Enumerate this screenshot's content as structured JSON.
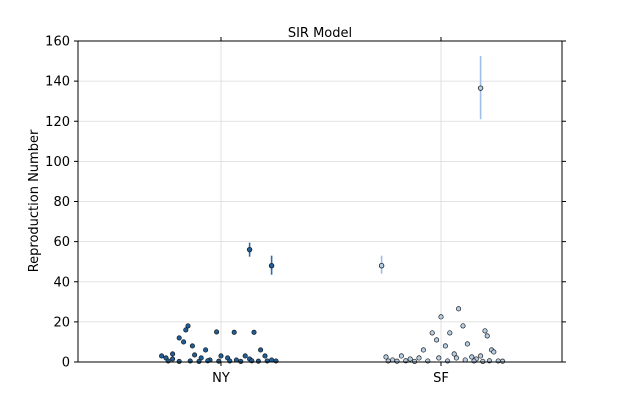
{
  "chart_data": {
    "type": "scatter",
    "title": "SIR Model",
    "xlabel": "",
    "ylabel": "Reproduction Number",
    "ylim": [
      0,
      160
    ],
    "yticks": [
      0,
      20,
      40,
      60,
      80,
      100,
      120,
      140,
      160
    ],
    "grid": true,
    "categories": [
      "NY",
      "SF"
    ],
    "series": [
      {
        "category": "NY",
        "color": "#1f5f99",
        "errorbar_color": "#2b6cb0",
        "points": [
          {
            "x": 0.12,
            "y": 18.0
          },
          {
            "x": 0.11,
            "y": 16.0
          },
          {
            "x": 0.1,
            "y": 10.0
          },
          {
            "x": 0.08,
            "y": 12.0
          },
          {
            "x": 0.14,
            "y": 8.0
          },
          {
            "x": 0.2,
            "y": 6.0
          },
          {
            "x": 0.25,
            "y": 15.0
          },
          {
            "x": 0.33,
            "y": 14.8
          },
          {
            "x": 0.42,
            "y": 14.8
          },
          {
            "x": 0.45,
            "y": 6.0
          },
          {
            "x": 0.05,
            "y": 4.0
          },
          {
            "x": 0.0,
            "y": 3.0
          },
          {
            "x": 0.02,
            "y": 2.0
          },
          {
            "x": 0.05,
            "y": 1.5
          },
          {
            "x": 0.15,
            "y": 3.5
          },
          {
            "x": 0.18,
            "y": 2.0
          },
          {
            "x": 0.22,
            "y": 1.0
          },
          {
            "x": 0.27,
            "y": 3.0
          },
          {
            "x": 0.3,
            "y": 2.0
          },
          {
            "x": 0.34,
            "y": 1.0
          },
          {
            "x": 0.38,
            "y": 3.0
          },
          {
            "x": 0.4,
            "y": 1.5
          },
          {
            "x": 0.47,
            "y": 3.0
          },
          {
            "x": 0.5,
            "y": 1.0
          },
          {
            "x": 0.03,
            "y": 0.5
          },
          {
            "x": 0.08,
            "y": 0.3
          },
          {
            "x": 0.13,
            "y": 0.5
          },
          {
            "x": 0.17,
            "y": 0.3
          },
          {
            "x": 0.21,
            "y": 0.6
          },
          {
            "x": 0.26,
            "y": 0.4
          },
          {
            "x": 0.31,
            "y": 0.5
          },
          {
            "x": 0.36,
            "y": 0.3
          },
          {
            "x": 0.41,
            "y": 0.6
          },
          {
            "x": 0.44,
            "y": 0.4
          },
          {
            "x": 0.48,
            "y": 0.5
          },
          {
            "x": 0.52,
            "y": 0.5
          }
        ],
        "errorbars": [
          {
            "x": 0.4,
            "y": 56.0,
            "low": 52.5,
            "high": 59.5
          },
          {
            "x": 0.5,
            "y": 48.0,
            "low": 43.5,
            "high": 53.0
          }
        ]
      },
      {
        "category": "SF",
        "color": "#b8cfe8",
        "errorbar_color": "#9ebfe6",
        "points": [
          {
            "x": 0.02,
            "y": 2.5
          },
          {
            "x": 0.05,
            "y": 1.0
          },
          {
            "x": 0.09,
            "y": 3.0
          },
          {
            "x": 0.13,
            "y": 1.5
          },
          {
            "x": 0.17,
            "y": 2.0
          },
          {
            "x": 0.19,
            "y": 6.0
          },
          {
            "x": 0.23,
            "y": 14.5
          },
          {
            "x": 0.27,
            "y": 22.5
          },
          {
            "x": 0.25,
            "y": 11.0
          },
          {
            "x": 0.29,
            "y": 8.0
          },
          {
            "x": 0.31,
            "y": 14.5
          },
          {
            "x": 0.33,
            "y": 4.0
          },
          {
            "x": 0.35,
            "y": 26.5
          },
          {
            "x": 0.37,
            "y": 18.0
          },
          {
            "x": 0.39,
            "y": 9.0
          },
          {
            "x": 0.43,
            "y": 1.5
          },
          {
            "x": 0.47,
            "y": 15.5
          },
          {
            "x": 0.48,
            "y": 13.0
          },
          {
            "x": 0.5,
            "y": 6.0
          },
          {
            "x": 0.51,
            "y": 5.0
          },
          {
            "x": 0.45,
            "y": 3.0
          },
          {
            "x": 0.41,
            "y": 2.5
          },
          {
            "x": 0.38,
            "y": 1.0
          },
          {
            "x": 0.34,
            "y": 2.0
          },
          {
            "x": 0.3,
            "y": 0.5
          },
          {
            "x": 0.26,
            "y": 2.0
          },
          {
            "x": 0.21,
            "y": 0.5
          },
          {
            "x": 0.15,
            "y": 0.3
          },
          {
            "x": 0.11,
            "y": 0.6
          },
          {
            "x": 0.07,
            "y": 0.4
          },
          {
            "x": 0.03,
            "y": 0.5
          },
          {
            "x": 0.53,
            "y": 0.5
          },
          {
            "x": 0.55,
            "y": 0.4
          },
          {
            "x": 0.49,
            "y": 0.6
          },
          {
            "x": 0.46,
            "y": 0.3
          },
          {
            "x": 0.42,
            "y": 0.5
          }
        ],
        "errorbars": [
          {
            "x": 0.0,
            "y": 48.0,
            "low": 44.0,
            "high": 53.0
          },
          {
            "x": 0.45,
            "y": 136.5,
            "low": 121.0,
            "high": 152.5
          }
        ]
      }
    ]
  }
}
